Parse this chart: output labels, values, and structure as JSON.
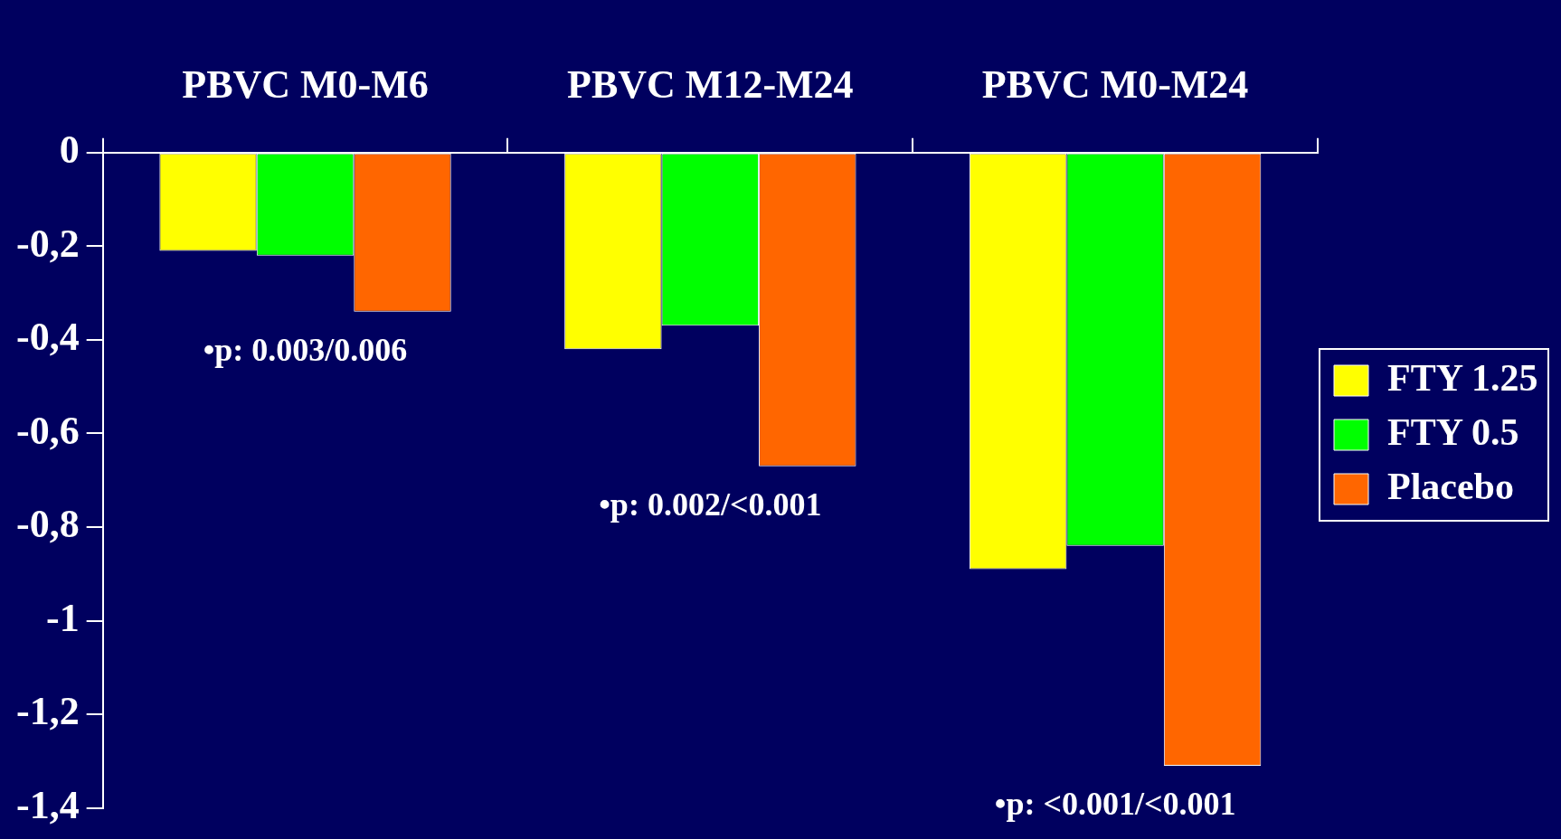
{
  "chart_data": {
    "type": "bar",
    "categories": [
      "PBVC M0-M6",
      "PBVC M12-M24",
      "PBVC M0-M24"
    ],
    "series": [
      {
        "name": "FTY 1.25",
        "color": "#ffff00",
        "values": [
          -0.21,
          -0.42,
          -0.89
        ]
      },
      {
        "name": "FTY 0.5",
        "color": "#00ff00",
        "values": [
          -0.22,
          -0.37,
          -0.84
        ]
      },
      {
        "name": "Placebo",
        "color": "#ff6600",
        "values": [
          -0.34,
          -0.67,
          -1.31
        ]
      }
    ],
    "ylim": [
      -1.4,
      0
    ],
    "yticks": [
      0,
      {
        "value": -0.2,
        "label": "-0,2"
      },
      {
        "value": -0.4,
        "label": "-0,4"
      },
      {
        "value": -0.6,
        "label": "-0,6"
      },
      {
        "value": -0.8,
        "label": "-0,8"
      },
      -1,
      {
        "value": -1.2,
        "label": "-1,2"
      },
      {
        "value": -1.4,
        "label": "-1,4"
      }
    ],
    "annotations": [
      "•p: 0.003/0.006",
      "•p: 0.002/<0.001",
      "•p: <0.001/<0.001"
    ],
    "grid": false,
    "legend": "right"
  }
}
